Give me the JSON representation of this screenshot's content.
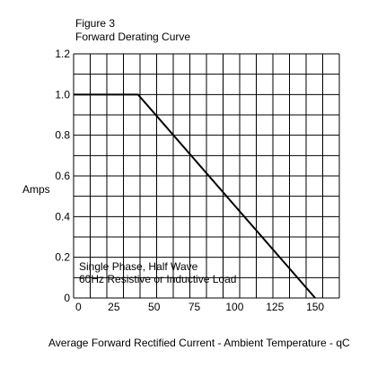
{
  "chart_data": {
    "type": "line",
    "figure_label": "Figure 3",
    "title": "Forward Derating Curve",
    "ylabel": "Amps",
    "xlabel": "Average Forward Rectified Current - Ambient Temperature - qC",
    "xlim": [
      0,
      165
    ],
    "ylim": [
      0,
      1.2
    ],
    "x_ticks": [
      0,
      25,
      50,
      75,
      100,
      125,
      150
    ],
    "x_tick_labels": [
      "0",
      "25",
      "50",
      "75",
      "100",
      "125",
      "150"
    ],
    "y_ticks": [
      0,
      0.2,
      0.4,
      0.6,
      0.8,
      1.0,
      1.2
    ],
    "y_tick_labels": [
      "0",
      "0.2",
      "0.4",
      "0.6",
      "0.8",
      "1.0",
      "1.2"
    ],
    "grid": true,
    "grid_columns": 16,
    "grid_rows": 12,
    "annotation_lines": [
      "Single Phase, Half Wave",
      "60Hz Resistive or Inductive Load"
    ],
    "series": [
      {
        "x": [
          0,
          40,
          150
        ],
        "y": [
          1.0,
          1.0,
          0.0
        ]
      }
    ]
  }
}
